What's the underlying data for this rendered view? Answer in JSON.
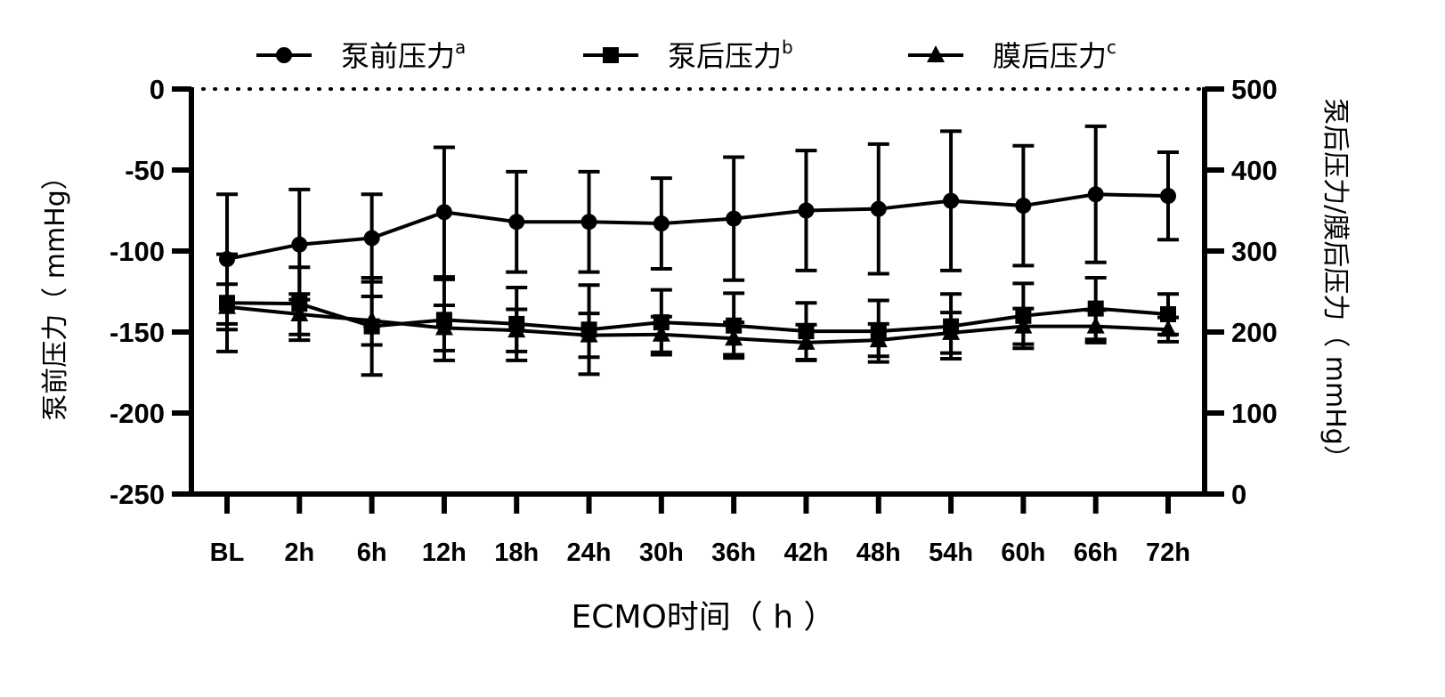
{
  "chart_data": {
    "type": "line",
    "xlabel": "ECMO时间（ h ）",
    "ylabel_left": "泵前压力（ mmHg）",
    "ylabel_right": "泵后压力/膜后压力（ mmHg）",
    "categories": [
      "BL",
      "2h",
      "6h",
      "12h",
      "18h",
      "24h",
      "30h",
      "36h",
      "42h",
      "48h",
      "54h",
      "60h",
      "66h",
      "72h"
    ],
    "ylim_left": [
      -250,
      0
    ],
    "yticks_left": [
      0,
      -50,
      -100,
      -150,
      -200,
      -250
    ],
    "ylim_right": [
      0,
      500
    ],
    "yticks_right": [
      500,
      400,
      300,
      200,
      100,
      0
    ],
    "reference_line": {
      "axis": "left",
      "value": 0,
      "style": "dotted"
    },
    "legend_position": "top",
    "series": [
      {
        "name": "泵前压力",
        "sup": "a",
        "axis": "left",
        "marker": "circle",
        "values": [
          -105,
          -96,
          -92,
          -76,
          -82,
          -82,
          -83,
          -80,
          -75,
          -74,
          -69,
          -72,
          -65,
          -66
        ],
        "sd": [
          40,
          34,
          27,
          40,
          31,
          31,
          28,
          38,
          37,
          40,
          43,
          37,
          42,
          27
        ]
      },
      {
        "name": "泵后压力",
        "sup": "b",
        "axis": "right",
        "marker": "square",
        "values": [
          236,
          235,
          207,
          215,
          210,
          203,
          212,
          208,
          201,
          201,
          207,
          220,
          229,
          222
        ],
        "sd": [
          60,
          45,
          60,
          50,
          45,
          55,
          40,
          40,
          35,
          38,
          40,
          40,
          38,
          25
        ]
      },
      {
        "name": "膜后压力",
        "sup": "c",
        "axis": "right",
        "marker": "triangle",
        "values": [
          231,
          222,
          214,
          205,
          202,
          196,
          197,
          192,
          187,
          190,
          199,
          207,
          207,
          203
        ],
        "sd": [
          28,
          25,
          30,
          28,
          26,
          27,
          22,
          20,
          22,
          20,
          25,
          22,
          20,
          15
        ]
      }
    ]
  }
}
